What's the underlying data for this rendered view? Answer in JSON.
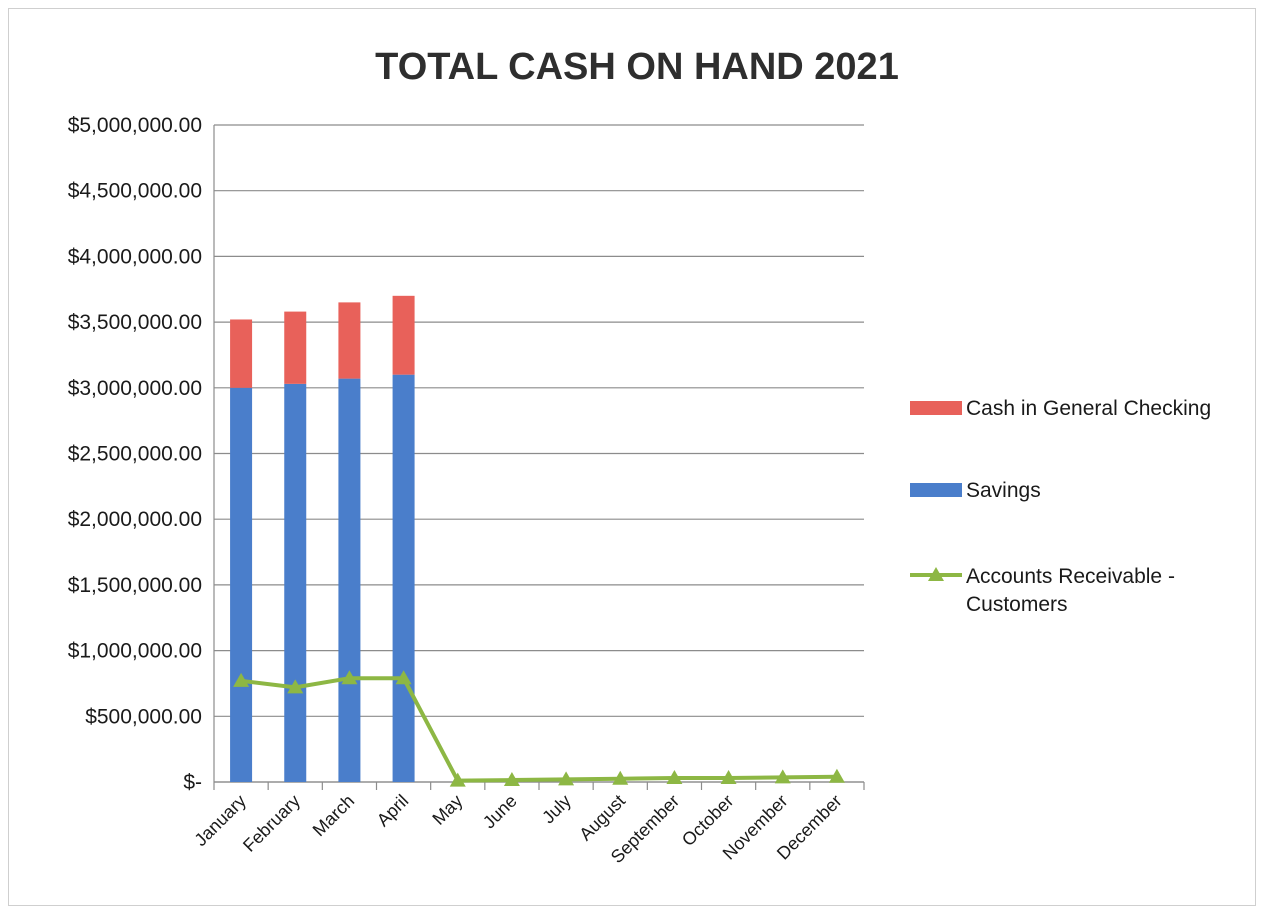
{
  "chart_data": {
    "type": "bar",
    "stacked": true,
    "title": "TOTAL CASH  ON HAND 2021",
    "categories": [
      "January",
      "February",
      "March",
      "April",
      "May",
      "June",
      "July",
      "August",
      "September",
      "October",
      "November",
      "December"
    ],
    "ylim": [
      0,
      5000000
    ],
    "yticks": [
      0,
      500000,
      1000000,
      1500000,
      2000000,
      2500000,
      3000000,
      3500000,
      4000000,
      4500000,
      5000000
    ],
    "ytick_labels": [
      "$-",
      "$500,000.00",
      "$1,000,000.00",
      "$1,500,000.00",
      "$2,000,000.00",
      "$2,500,000.00",
      "$3,000,000.00",
      "$3,500,000.00",
      "$4,000,000.00",
      "$4,500,000.00",
      "$5,000,000.00"
    ],
    "grid": true,
    "legend_position": "right",
    "series": [
      {
        "name": "Cash in General Checking",
        "kind": "bar",
        "color": "#e8615a",
        "values": [
          520000,
          550000,
          580000,
          600000,
          0,
          0,
          0,
          0,
          0,
          0,
          0,
          0
        ]
      },
      {
        "name": "Savings",
        "kind": "bar",
        "color": "#4a7ecb",
        "values": [
          3000000,
          3030000,
          3070000,
          3100000,
          0,
          0,
          0,
          0,
          0,
          0,
          0,
          0
        ]
      },
      {
        "name": "Accounts Receivable - Customers",
        "legend_lines": [
          "Accounts Receivable -",
          "Customers"
        ],
        "kind": "line",
        "marker": "triangle",
        "color": "#8db744",
        "values": [
          770000,
          720000,
          790000,
          790000,
          10000,
          15000,
          20000,
          25000,
          30000,
          30000,
          35000,
          40000
        ]
      }
    ]
  }
}
